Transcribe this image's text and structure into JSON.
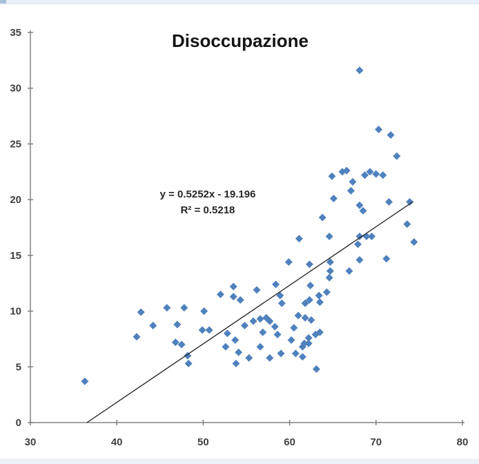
{
  "window": {
    "top_strip_color": "#e9eff7",
    "bottom_strip_color": "#eef2f7"
  },
  "chart_data": {
    "type": "scatter",
    "title": "Disoccupazione",
    "xlabel": "",
    "ylabel": "",
    "xlim": [
      30,
      80
    ],
    "ylim": [
      0,
      35
    ],
    "x_ticks": [
      30,
      40,
      50,
      60,
      70,
      80
    ],
    "y_ticks": [
      0,
      5,
      10,
      15,
      20,
      25,
      30,
      35
    ],
    "grid": false,
    "legend": false,
    "series_color": "#4F81BD",
    "axis_color": "#808080",
    "tick_label_color": "#404040",
    "trendline": {
      "equation_label": "y = 0.5252x - 19.196",
      "r2_label": "R² = 0.5218",
      "slope": 0.5252,
      "intercept": -19.196,
      "x_start": 36.55,
      "x_end": 74.3,
      "color": "#2b2b2b"
    },
    "points": [
      [
        36.3,
        3.7
      ],
      [
        42.3,
        7.7
      ],
      [
        42.8,
        9.9
      ],
      [
        44.2,
        8.7
      ],
      [
        45.8,
        10.3
      ],
      [
        47.8,
        10.3
      ],
      [
        47.0,
        8.8
      ],
      [
        46.8,
        7.2
      ],
      [
        47.5,
        7.0
      ],
      [
        48.2,
        6.0
      ],
      [
        48.3,
        5.3
      ],
      [
        49.9,
        8.3
      ],
      [
        50.7,
        8.3
      ],
      [
        50.1,
        10.0
      ],
      [
        52.0,
        11.5
      ],
      [
        53.5,
        12.2
      ],
      [
        53.5,
        11.3
      ],
      [
        54.3,
        11.0
      ],
      [
        56.2,
        11.9
      ],
      [
        58.4,
        12.4
      ],
      [
        58.9,
        11.4
      ],
      [
        59.1,
        10.7
      ],
      [
        62.4,
        12.3
      ],
      [
        62.3,
        11.0
      ],
      [
        61.8,
        10.7
      ],
      [
        54.8,
        8.7
      ],
      [
        55.8,
        9.1
      ],
      [
        56.6,
        9.3
      ],
      [
        57.3,
        9.4
      ],
      [
        57.7,
        9.1
      ],
      [
        58.3,
        8.6
      ],
      [
        60.5,
        8.5
      ],
      [
        61.0,
        9.6
      ],
      [
        62.5,
        9.2
      ],
      [
        61.8,
        9.4
      ],
      [
        52.8,
        8.0
      ],
      [
        53.7,
        7.4
      ],
      [
        56.9,
        8.1
      ],
      [
        58.6,
        7.9
      ],
      [
        60.2,
        7.4
      ],
      [
        52.6,
        6.8
      ],
      [
        54.1,
        6.3
      ],
      [
        56.6,
        6.8
      ],
      [
        53.8,
        5.3
      ],
      [
        55.3,
        5.8
      ],
      [
        57.7,
        5.8
      ],
      [
        59.0,
        6.2
      ],
      [
        60.7,
        6.2
      ],
      [
        61.5,
        6.8
      ],
      [
        62.2,
        7.1
      ],
      [
        63.1,
        4.8
      ],
      [
        63.0,
        7.9
      ],
      [
        63.5,
        8.1
      ],
      [
        62.2,
        7.6
      ],
      [
        61.7,
        7.1
      ],
      [
        61.5,
        5.9
      ],
      [
        62.3,
        14.2
      ],
      [
        64.7,
        14.4
      ],
      [
        68.1,
        14.6
      ],
      [
        71.2,
        14.7
      ],
      [
        64.7,
        13.6
      ],
      [
        64.6,
        13.0
      ],
      [
        66.9,
        13.6
      ],
      [
        64.3,
        11.7
      ],
      [
        63.4,
        11.4
      ],
      [
        63.5,
        10.8
      ],
      [
        59.9,
        14.4
      ],
      [
        61.1,
        16.5
      ],
      [
        63.8,
        18.4
      ],
      [
        64.6,
        16.7
      ],
      [
        68.1,
        16.7
      ],
      [
        68.9,
        16.7
      ],
      [
        69.5,
        16.7
      ],
      [
        67.9,
        16.0
      ],
      [
        73.6,
        17.8
      ],
      [
        74.4,
        16.2
      ],
      [
        64.9,
        22.1
      ],
      [
        66.1,
        22.5
      ],
      [
        66.6,
        22.6
      ],
      [
        67.3,
        21.6
      ],
      [
        67.1,
        20.8
      ],
      [
        68.7,
        22.2
      ],
      [
        69.3,
        22.5
      ],
      [
        70.0,
        22.3
      ],
      [
        70.8,
        22.2
      ],
      [
        65.1,
        20.1
      ],
      [
        68.1,
        19.5
      ],
      [
        68.5,
        19.0
      ],
      [
        71.5,
        19.8
      ],
      [
        73.9,
        19.8
      ],
      [
        68.1,
        31.6
      ],
      [
        70.3,
        26.3
      ],
      [
        71.7,
        25.8
      ],
      [
        72.4,
        23.9
      ]
    ]
  }
}
